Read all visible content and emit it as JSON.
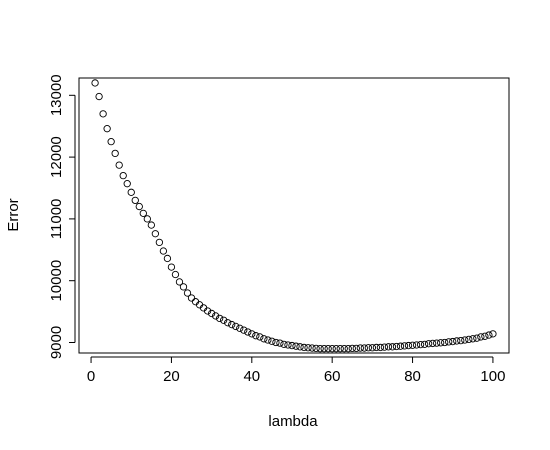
{
  "chart_data": {
    "type": "scatter",
    "title": "",
    "xlabel": "lambda",
    "ylabel": "Error",
    "xlim": [
      -3,
      104
    ],
    "ylim": [
      8830,
      13280
    ],
    "xticks": [
      0,
      20,
      40,
      60,
      80,
      100
    ],
    "yticks": [
      9000,
      10000,
      11000,
      12000,
      13000
    ],
    "grid": false,
    "marker": "open-circle",
    "point_color": "#000000",
    "series": [
      {
        "x": [
          1,
          2,
          3,
          4,
          5,
          6,
          7,
          8,
          9,
          10,
          11,
          12,
          13,
          14,
          15,
          16,
          17,
          18,
          19,
          20,
          21,
          22,
          23,
          24,
          25,
          26,
          27,
          28,
          29,
          30,
          31,
          32,
          33,
          34,
          35,
          36,
          37,
          38,
          39,
          40,
          41,
          42,
          43,
          44,
          45,
          46,
          47,
          48,
          49,
          50,
          51,
          52,
          53,
          54,
          55,
          56,
          57,
          58,
          59,
          60,
          61,
          62,
          63,
          64,
          65,
          66,
          67,
          68,
          69,
          70,
          71,
          72,
          73,
          74,
          75,
          76,
          77,
          78,
          79,
          80,
          81,
          82,
          83,
          84,
          85,
          86,
          87,
          88,
          89,
          90,
          91,
          92,
          93,
          94,
          95,
          96,
          97,
          98,
          99,
          100
        ],
        "y": [
          13200,
          12980,
          12700,
          12460,
          12250,
          12060,
          11870,
          11700,
          11570,
          11430,
          11300,
          11200,
          11090,
          11000,
          10900,
          10760,
          10620,
          10480,
          10360,
          10220,
          10100,
          9980,
          9900,
          9800,
          9720,
          9660,
          9610,
          9560,
          9510,
          9470,
          9430,
          9390,
          9360,
          9320,
          9290,
          9260,
          9230,
          9200,
          9170,
          9140,
          9110,
          9090,
          9060,
          9040,
          9020,
          9000,
          8990,
          8970,
          8960,
          8950,
          8940,
          8930,
          8920,
          8915,
          8910,
          8905,
          8900,
          8900,
          8900,
          8900,
          8900,
          8900,
          8900,
          8900,
          8905,
          8905,
          8910,
          8910,
          8915,
          8915,
          8920,
          8920,
          8925,
          8930,
          8930,
          8935,
          8940,
          8945,
          8950,
          8955,
          8960,
          8965,
          8970,
          8980,
          8985,
          8990,
          8995,
          9000,
          9010,
          9015,
          9025,
          9030,
          9040,
          9050,
          9060,
          9070,
          9090,
          9100,
          9120,
          9140
        ]
      }
    ]
  }
}
